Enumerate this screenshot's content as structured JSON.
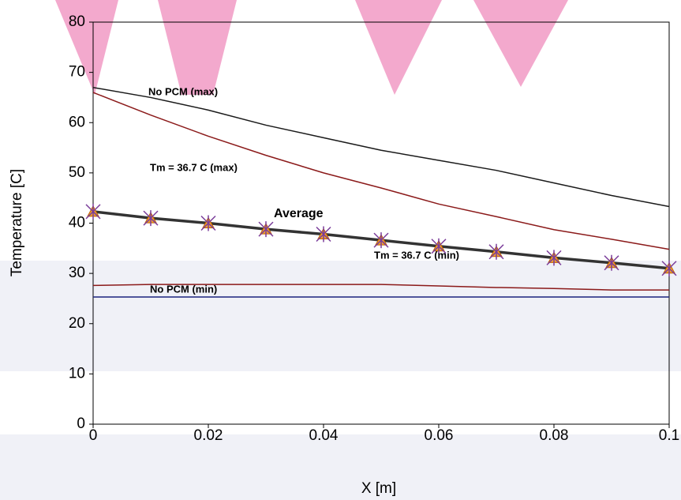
{
  "chart_data": {
    "type": "line",
    "x_label": "X [m]",
    "y_label": "Temperature [C]",
    "x": [
      0,
      0.01,
      0.02,
      0.03,
      0.04,
      0.05,
      0.06,
      0.07,
      0.08,
      0.09,
      0.1
    ],
    "xlim": [
      0,
      0.1
    ],
    "xticks": [
      0,
      0.02,
      0.04,
      0.06,
      0.08,
      0.1
    ],
    "ylim": [
      0,
      80
    ],
    "yticks": [
      0,
      10,
      20,
      30,
      40,
      50,
      60,
      70,
      80
    ],
    "grid": false,
    "series": [
      {
        "name": "No PCM (max)",
        "color": "#1a1a1a",
        "values": [
          67,
          65,
          62.5,
          59.5,
          57,
          54.5,
          52.5,
          50.5,
          48,
          45.5,
          43.3
        ]
      },
      {
        "name": "Tm = 36.7 C (max)",
        "color": "#8b1a1a",
        "values": [
          66,
          61.5,
          57.3,
          53.5,
          50,
          47,
          43.8,
          41.3,
          38.7,
          36.8,
          34.8
        ]
      },
      {
        "name": "Average",
        "color": "#333333",
        "values": [
          42.3,
          41,
          40,
          38.8,
          37.8,
          36.6,
          35.4,
          34.3,
          33.1,
          32.1,
          31
        ],
        "markers": true
      },
      {
        "name": "Tm = 36.7 C (min)",
        "color": "#8b1a1a",
        "values": [
          27.6,
          27.8,
          27.8,
          27.8,
          27.8,
          27.8,
          27.5,
          27.2,
          27,
          26.7,
          26.7
        ]
      },
      {
        "name": "No PCM (min)",
        "color": "#1a237e",
        "values": [
          25.3,
          25.3,
          25.3,
          25.3,
          25.3,
          25.3,
          25.3,
          25.3,
          25.3,
          25.3,
          25.3
        ]
      }
    ]
  }
}
